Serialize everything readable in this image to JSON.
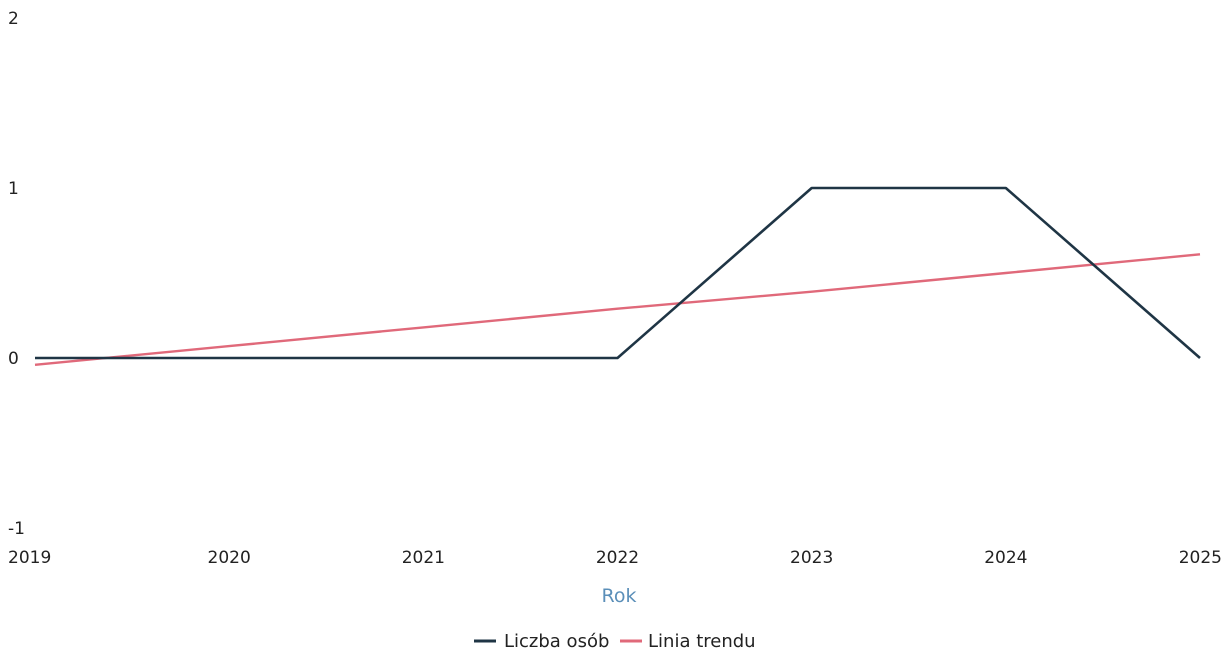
{
  "chart_data": {
    "type": "line",
    "title": "",
    "xlabel": "Rok",
    "ylabel": "",
    "x": [
      2019,
      2020,
      2021,
      2022,
      2023,
      2024,
      2025
    ],
    "x_ticks": [
      "2019",
      "2020",
      "2021",
      "2022",
      "2023",
      "2024",
      "2025"
    ],
    "y_ticks": [
      "2",
      "1",
      "0",
      "-1"
    ],
    "xlim": [
      2019,
      2025
    ],
    "ylim": [
      -1,
      2
    ],
    "grid": false,
    "legend_position": "bottom-center",
    "series": [
      {
        "name": "Liczba osób",
        "color": "#1f3545",
        "values": [
          0,
          0,
          0,
          0,
          1,
          1,
          0
        ]
      },
      {
        "name": "Linia trendu",
        "color": "#e0697a",
        "values": [
          -0.04,
          0.07,
          0.18,
          0.29,
          0.39,
          0.5,
          0.61
        ]
      }
    ],
    "colors": {
      "axis_title": "#5b8fb9",
      "tick_text": "#222222"
    }
  }
}
